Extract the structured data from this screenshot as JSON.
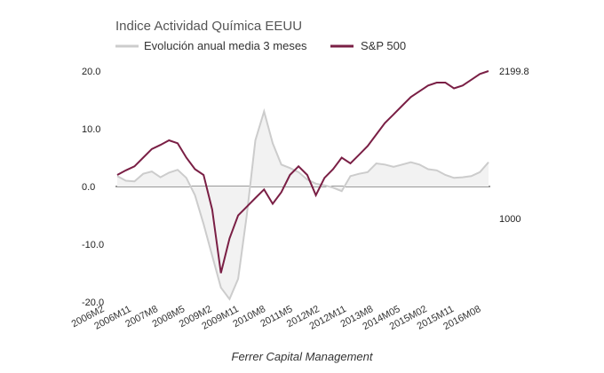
{
  "chart_data": {
    "type": "line",
    "title": "Indice Actividad Química EEUU",
    "caption": "Ferrer Capital Management",
    "legend": {
      "placement": "top-left"
    },
    "grid": false,
    "x": [
      "2006M2",
      "2006M5",
      "2006M8",
      "2006M11",
      "2007M2",
      "2007M5",
      "2007M8",
      "2007M11",
      "2008M2",
      "2008M5",
      "2008M8",
      "2008M11",
      "2009M2",
      "2009M5",
      "2009M8",
      "2009M11",
      "2010M2",
      "2010M5",
      "2010M8",
      "2010M11",
      "2011M2",
      "2011M5",
      "2011M8",
      "2011M11",
      "2012M2",
      "2012M5",
      "2012M8",
      "2012M11",
      "2013M2",
      "2013M5",
      "2013M8",
      "2013M11",
      "2014M2",
      "2014M5",
      "2014M8",
      "2014M11",
      "2015M2",
      "2015M5",
      "2015M8",
      "2015M11",
      "2016M2",
      "2016M5",
      "2016M8",
      "2016M11"
    ],
    "x_tick_labels": [
      "2006M2",
      "2006M11",
      "2007M8",
      "2008M5",
      "2009M2",
      "2009M11",
      "2010M8",
      "2011M5",
      "2012M2",
      "2012M11",
      "2013M8",
      "2014M05",
      "2015M02",
      "2015M11",
      "2016M08"
    ],
    "left_axis": {
      "ticks": [
        "20.0",
        "10.0",
        "0.0",
        "-10.0",
        "-20.0"
      ],
      "ylim": [
        -20,
        20
      ]
    },
    "right_axis": {
      "labels": [
        "2199.8",
        "1000"
      ]
    },
    "series": [
      {
        "name": "Evolución anual media 3 meses",
        "style": "area",
        "color": "#cccccc",
        "fill": "#f2f2f2",
        "values": [
          1.8,
          1.0,
          0.9,
          2.2,
          2.6,
          1.6,
          2.4,
          2.9,
          1.5,
          -1.5,
          -6.5,
          -12.0,
          -17.5,
          -19.5,
          -16.0,
          -5.0,
          8.0,
          13.0,
          7.5,
          3.8,
          3.2,
          2.5,
          1.2,
          0.5,
          0.2,
          -0.2,
          -0.8,
          1.8,
          2.2,
          2.5,
          4.0,
          3.8,
          3.4,
          3.8,
          4.2,
          3.8,
          3.0,
          2.8,
          2.0,
          1.5,
          1.6,
          1.8,
          2.5,
          4.2
        ]
      },
      {
        "name": "S&P 500",
        "style": "line",
        "color": "#7a1f45",
        "values": [
          2.0,
          2.8,
          3.5,
          5.0,
          6.5,
          7.2,
          8.0,
          7.5,
          5.0,
          3.0,
          2.0,
          -4.0,
          -15.0,
          -9.0,
          -5.0,
          -3.5,
          -2.0,
          -0.5,
          -3.0,
          -1.0,
          2.0,
          3.5,
          2.0,
          -1.5,
          1.5,
          3.0,
          5.0,
          4.0,
          5.5,
          7.0,
          9.0,
          11.0,
          12.5,
          14.0,
          15.5,
          16.5,
          17.5,
          18.0,
          18.0,
          17.0,
          17.5,
          18.5,
          19.5,
          20.0
        ]
      }
    ]
  }
}
